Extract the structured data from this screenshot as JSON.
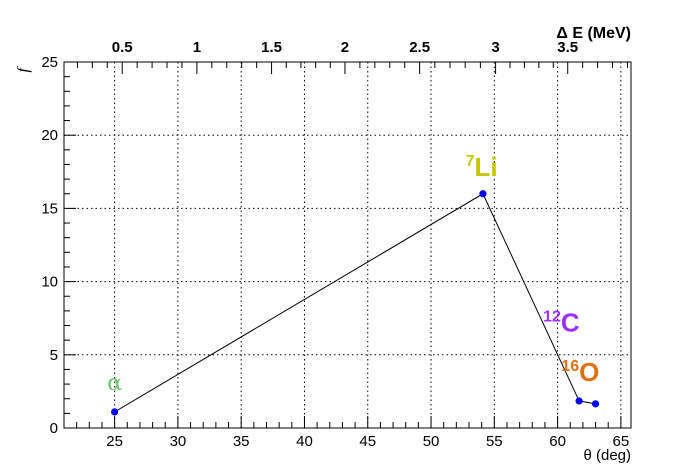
{
  "chart_data": {
    "type": "line",
    "xlabel": "θ (deg)",
    "ylabel": "f",
    "x2label": "Δ E (MeV)",
    "xlim": [
      21,
      65.8
    ],
    "ylim": [
      0,
      25
    ],
    "x_ticks": [
      25,
      30,
      35,
      40,
      45,
      50,
      55,
      60,
      65
    ],
    "y_ticks": [
      0,
      5,
      10,
      15,
      20,
      25
    ],
    "x2_ticks": [
      0.5,
      1,
      1.5,
      2,
      2.5,
      3,
      3.5
    ],
    "x2_tick_positions_theta": [
      25.6,
      31.5,
      37.4,
      43.2,
      49.1,
      55.1,
      60.8
    ],
    "grid": true,
    "series": [
      {
        "color": "#0000ff",
        "line_color": "#000000",
        "x": [
          25.0,
          54.1,
          61.7,
          63.0
        ],
        "y": [
          1.1,
          16.0,
          1.85,
          1.65
        ]
      }
    ],
    "annotations": [
      {
        "text": "α",
        "x": 25.0,
        "y": 2.6,
        "color": "#6ac46a",
        "greek": true
      },
      {
        "sup": "7",
        "text": "Li",
        "x": 54.0,
        "y": 17.2,
        "color": "#c8c800"
      },
      {
        "sup": "12",
        "text": "C",
        "x": 60.3,
        "y": 6.6,
        "color": "#9b30ff"
      },
      {
        "sup": "16",
        "text": "O",
        "x": 61.8,
        "y": 3.2,
        "color": "#e07010"
      }
    ]
  }
}
